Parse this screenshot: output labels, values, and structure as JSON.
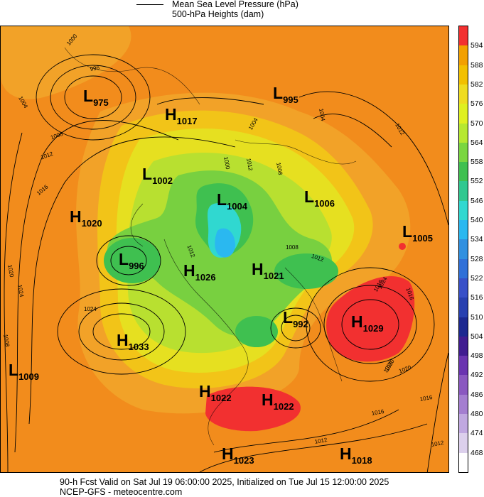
{
  "header": {
    "line1": "Mean Sea Level Pressure (hPa)",
    "line2": "500-hPa Heights (dam)"
  },
  "footer": {
    "line1": "90-h Fcst Valid on Sat Jul 19 06:00:00 2025, Initialized on Tue Jul 15 12:00:00 2025",
    "line2": "NCEP-GFS - meteocentre.com"
  },
  "colorbar": {
    "labels": [
      "594",
      "588",
      "582",
      "576",
      "570",
      "564",
      "558",
      "552",
      "546",
      "540",
      "534",
      "528",
      "522",
      "516",
      "510",
      "504",
      "498",
      "492",
      "486",
      "480",
      "474",
      "468"
    ],
    "colors": [
      "#f23030",
      "#f2a000",
      "#f2c000",
      "#efdc20",
      "#dff020",
      "#b6e830",
      "#7ad640",
      "#3fc050",
      "#30c890",
      "#30d8d0",
      "#2ab8f0",
      "#3090e0",
      "#3070d8",
      "#3850c8",
      "#2840b0",
      "#1c2890",
      "#401c90",
      "#6a34b0",
      "#8a58c0",
      "#a47ed0",
      "#c0a8e0",
      "#dcd0ec",
      "#ffffff"
    ]
  },
  "systems": [
    {
      "type": "L",
      "value": "975",
      "color": "#000"
    },
    {
      "type": "H",
      "value": "1017",
      "color": "#000"
    },
    {
      "type": "L",
      "value": "995",
      "color": "#000"
    },
    {
      "type": "L",
      "value": "1002",
      "color": "#000"
    },
    {
      "type": "L",
      "value": "1006",
      "color": "#000"
    },
    {
      "type": "L",
      "value": "1004",
      "color": "#000"
    },
    {
      "type": "H",
      "value": "1020",
      "color": "#000"
    },
    {
      "type": "L",
      "value": "1005",
      "color": "#000"
    },
    {
      "type": "L",
      "value": "996",
      "color": "#000"
    },
    {
      "type": "H",
      "value": "1026",
      "color": "#000"
    },
    {
      "type": "H",
      "value": "1021",
      "color": "#000"
    },
    {
      "type": "L",
      "value": "992",
      "color": "#000"
    },
    {
      "type": "H",
      "value": "1029",
      "color": "#000"
    },
    {
      "type": "H",
      "value": "1033",
      "color": "#000"
    },
    {
      "type": "L",
      "value": "1009",
      "color": "#000"
    },
    {
      "type": "H",
      "value": "1022",
      "color": "#000"
    },
    {
      "type": "H",
      "value": "1022",
      "color": "#000"
    },
    {
      "type": "H",
      "value": "1023",
      "color": "#000"
    },
    {
      "type": "H",
      "value": "1018",
      "color": "#000"
    }
  ],
  "isobar_labels": [
    "1000",
    "996",
    "1004",
    "1008",
    "1012",
    "1016",
    "1020",
    "1024",
    "1020",
    "1016",
    "1012",
    "1024",
    "1016",
    "1020",
    "1016",
    "1012",
    "1000",
    "1012",
    "1008",
    "1012",
    "1004",
    "1008",
    "1004",
    "1012",
    "1008",
    "1012",
    "1024",
    "1020",
    "1016"
  ]
}
